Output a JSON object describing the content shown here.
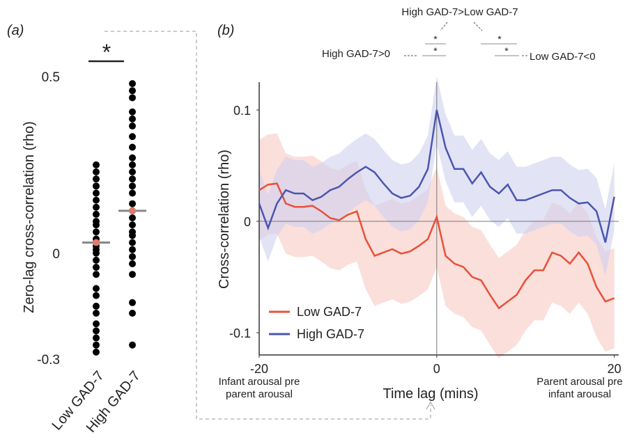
{
  "chart_data": [
    {
      "type": "strip",
      "panel_label": "(a)",
      "ylabel": "Zero-lag cross-correlation (rho)",
      "categories": [
        "Low GAD-7",
        "High GAD-7"
      ],
      "values": [
        [
          0.25,
          0.23,
          0.21,
          0.19,
          0.17,
          0.15,
          0.13,
          0.11,
          0.09,
          0.08,
          0.06,
          0.04,
          0.03,
          0.02,
          0.01,
          0,
          -0.02,
          -0.04,
          -0.06,
          -0.1,
          -0.12,
          -0.15,
          -0.17,
          -0.2,
          -0.22,
          -0.24,
          -0.26,
          -0.28
        ],
        [
          0.48,
          0.46,
          0.44,
          0.4,
          0.38,
          0.36,
          0.33,
          0.3,
          0.27,
          0.25,
          0.23,
          0.21,
          0.19,
          0.17,
          0.14,
          0.12,
          0.1,
          0.08,
          0.06,
          0.05,
          0.03,
          0.01,
          -0.01,
          -0.03,
          -0.06,
          -0.14,
          -0.17,
          -0.26
        ]
      ],
      "medians": [
        0.03,
        0.12
      ],
      "color": "#000000",
      "median_color": "#888888",
      "median_dot_color": "#e07a70",
      "ylim": [
        -0.3,
        0.5
      ],
      "yticks": [
        -0.3,
        0,
        0.5
      ],
      "significance": "*"
    },
    {
      "type": "line",
      "panel_label": "(b)",
      "xlabel": "Time lag (mins)",
      "ylabel": "Cross-correlation (rho)",
      "x": [
        -20,
        -19,
        -18,
        -17,
        -16,
        -15,
        -14,
        -13,
        -12,
        -11,
        -10,
        -9,
        -8,
        -7,
        -6,
        -5,
        -4,
        -3,
        -2,
        -1,
        0,
        1,
        2,
        3,
        4,
        5,
        6,
        7,
        8,
        9,
        10,
        11,
        12,
        13,
        14,
        15,
        16,
        17,
        18,
        19,
        20
      ],
      "series": [
        {
          "name": "Low GAD-7",
          "color": "#e8503a",
          "band_color": "#f7c9c3",
          "ci": 0.045,
          "values": [
            0.028,
            0.033,
            0.034,
            0.016,
            0.013,
            0.013,
            0.014,
            0.009,
            0.003,
            0.001,
            0.006,
            0.009,
            -0.016,
            -0.031,
            -0.028,
            -0.025,
            -0.029,
            -0.027,
            -0.022,
            -0.016,
            0.004,
            -0.031,
            -0.038,
            -0.041,
            -0.05,
            -0.053,
            -0.066,
            -0.078,
            -0.072,
            -0.066,
            -0.053,
            -0.044,
            -0.044,
            -0.028,
            -0.031,
            -0.038,
            -0.028,
            -0.038,
            -0.059,
            -0.072,
            -0.069
          ]
        },
        {
          "name": "High GAD-7",
          "color": "#4a55b0",
          "band_color": "#cfd0ee",
          "ci": 0.03,
          "values": [
            0.016,
            -0.006,
            0.016,
            0.028,
            0.025,
            0.025,
            0.019,
            0.022,
            0.028,
            0.031,
            0.038,
            0.044,
            0.049,
            0.044,
            0.034,
            0.025,
            0.021,
            0.023,
            0.031,
            0.047,
            0.1,
            0.066,
            0.047,
            0.047,
            0.034,
            0.044,
            0.031,
            0.025,
            0.033,
            0.019,
            0.019,
            0.022,
            0.025,
            0.028,
            0.028,
            0.021,
            0.016,
            0.017,
            0.009,
            -0.019,
            0.022
          ]
        }
      ],
      "xlim": [
        -20,
        20.5
      ],
      "ylim": [
        -0.12,
        0.125
      ],
      "xticks": [
        -20,
        0,
        20
      ],
      "yticks": [
        -0.1,
        0,
        0.1
      ],
      "legend": "lower left",
      "x_notes": [
        "Infant arousal pre parent arousal",
        "Parent arousal pre infant arousal"
      ],
      "annotations": [
        "High GAD-7>Low GAD-7",
        "High GAD-7>0",
        "Low GAD-7<0",
        "*"
      ]
    }
  ]
}
